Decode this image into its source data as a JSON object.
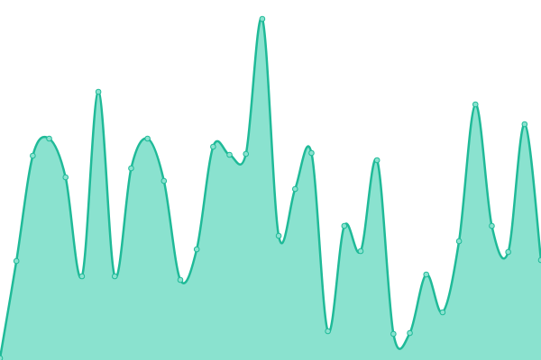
{
  "chart_data": {
    "type": "area",
    "x": [
      0,
      1,
      2,
      3,
      4,
      5,
      6,
      7,
      8,
      9,
      10,
      11,
      12,
      13,
      14,
      15,
      16,
      17,
      18,
      19,
      20,
      21,
      22,
      23,
      24,
      25,
      26,
      27,
      28,
      29,
      30,
      31,
      32,
      33
    ],
    "values": [
      2,
      110,
      227,
      246,
      203,
      93,
      298,
      93,
      213,
      246,
      199,
      89,
      123,
      237,
      228,
      229,
      379,
      138,
      190,
      230,
      32,
      149,
      121,
      222,
      29,
      30,
      95,
      53,
      132,
      284,
      149,
      120,
      262,
      111
    ],
    "xlim": [
      0,
      33
    ],
    "ylim": [
      0,
      400
    ],
    "color": "#1fba98",
    "fill": "#8ae2cf",
    "markers": true
  }
}
